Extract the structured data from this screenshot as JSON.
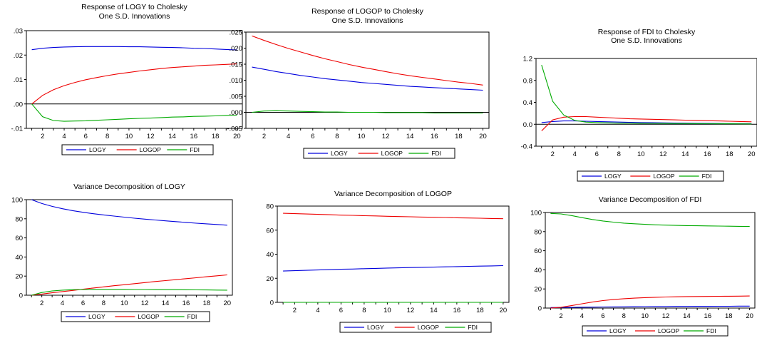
{
  "series_colors": {
    "LOGY": "#0000dd",
    "LOGOP": "#ee0000",
    "FDI": "#00aa00"
  },
  "chart_data": [
    {
      "type": "line",
      "title": "Response of LOGY to Cholesky One S.D. Innovations",
      "title_lines": [
        "Response of LOGY to Cholesky",
        "One S.D. Innovations"
      ],
      "x": [
        1,
        2,
        3,
        4,
        5,
        6,
        7,
        8,
        9,
        10,
        11,
        12,
        13,
        14,
        15,
        16,
        17,
        18,
        19,
        20
      ],
      "xticks": [
        "2",
        "4",
        "6",
        "8",
        "10",
        "12",
        "14",
        "16",
        "18",
        "20"
      ],
      "ylim": [
        -0.01,
        0.03
      ],
      "yticks": [
        -0.01,
        0.0,
        0.01,
        0.02,
        0.03
      ],
      "ytick_labels": [
        "-.01",
        ".00",
        ".01",
        ".02",
        ".03"
      ],
      "zero_line": true,
      "legend": [
        "LOGY",
        "LOGOP",
        "FDI"
      ],
      "series": [
        {
          "name": "LOGY",
          "values": [
            0.0222,
            0.0228,
            0.0231,
            0.0233,
            0.0234,
            0.0235,
            0.0235,
            0.0235,
            0.0235,
            0.0234,
            0.0234,
            0.0233,
            0.0232,
            0.0231,
            0.023,
            0.0228,
            0.0227,
            0.0225,
            0.0223,
            0.0221
          ]
        },
        {
          "name": "LOGOP",
          "values": [
            0.0,
            0.0035,
            0.0058,
            0.0075,
            0.0088,
            0.0099,
            0.0108,
            0.0116,
            0.0123,
            0.0129,
            0.0135,
            0.014,
            0.0145,
            0.0149,
            0.0152,
            0.0155,
            0.0158,
            0.016,
            0.0162,
            0.0164
          ]
        },
        {
          "name": "FDI",
          "values": [
            0.0,
            -0.0052,
            -0.0068,
            -0.0071,
            -0.007,
            -0.0069,
            -0.0067,
            -0.0065,
            -0.0063,
            -0.0061,
            -0.0059,
            -0.0058,
            -0.0056,
            -0.0054,
            -0.0053,
            -0.0051,
            -0.005,
            -0.0049,
            -0.0047,
            -0.0046
          ]
        }
      ]
    },
    {
      "type": "line",
      "title": "Response of LOGOP to Cholesky One S.D. Innovations",
      "title_lines": [
        "Response of LOGOP to Cholesky",
        "One S.D. Innovations"
      ],
      "x": [
        1,
        2,
        3,
        4,
        5,
        6,
        7,
        8,
        9,
        10,
        11,
        12,
        13,
        14,
        15,
        16,
        17,
        18,
        19,
        20
      ],
      "xticks": [
        "2",
        "4",
        "6",
        "8",
        "10",
        "12",
        "14",
        "16",
        "18",
        "20"
      ],
      "ylim": [
        -0.005,
        0.025
      ],
      "yticks": [
        -0.005,
        0.0,
        0.005,
        0.01,
        0.015,
        0.02,
        0.025
      ],
      "ytick_labels": [
        "-.005",
        ".000",
        ".005",
        ".010",
        ".015",
        ".020",
        ".025"
      ],
      "zero_line": true,
      "legend": [
        "LOGY",
        "LOGOP",
        "FDI"
      ],
      "series": [
        {
          "name": "LOGY",
          "values": [
            0.0141,
            0.0134,
            0.0127,
            0.0121,
            0.0115,
            0.011,
            0.0105,
            0.0101,
            0.0097,
            0.0093,
            0.009,
            0.0087,
            0.0084,
            0.0081,
            0.0079,
            0.0077,
            0.0075,
            0.0073,
            0.0071,
            0.0069
          ]
        },
        {
          "name": "LOGOP",
          "values": [
            0.0238,
            0.0224,
            0.0211,
            0.0199,
            0.0188,
            0.0177,
            0.0167,
            0.0158,
            0.0149,
            0.0141,
            0.0134,
            0.0127,
            0.012,
            0.0114,
            0.0109,
            0.0104,
            0.0099,
            0.0094,
            0.009,
            0.0085
          ]
        },
        {
          "name": "FDI",
          "values": [
            0.0,
            0.0004,
            0.0005,
            0.0004,
            0.0003,
            0.0002,
            0.0001,
            0.0001,
            0.0,
            0.0,
            0.0,
            -0.0001,
            -0.0001,
            -0.0001,
            -0.0001,
            -0.0002,
            -0.0002,
            -0.0002,
            -0.0002,
            -0.0002
          ]
        }
      ]
    },
    {
      "type": "line",
      "title": "Response of FDI to Cholesky One S.D. Innovations",
      "title_lines": [
        "Response of FDI to Cholesky",
        "One S.D. Innovations"
      ],
      "x": [
        1,
        2,
        3,
        4,
        5,
        6,
        7,
        8,
        9,
        10,
        11,
        12,
        13,
        14,
        15,
        16,
        17,
        18,
        19,
        20
      ],
      "xticks": [
        "2",
        "4",
        "6",
        "8",
        "10",
        "12",
        "14",
        "16",
        "18",
        "20"
      ],
      "ylim": [
        -0.4,
        1.2
      ],
      "yticks": [
        -0.4,
        0.0,
        0.4,
        0.8,
        1.2
      ],
      "ytick_labels": [
        "-0.4",
        "0.0",
        "0.4",
        "0.8",
        "1.2"
      ],
      "zero_line": true,
      "legend": [
        "LOGY",
        "LOGOP",
        "FDI"
      ],
      "series": [
        {
          "name": "LOGY",
          "values": [
            0.03,
            0.05,
            0.06,
            0.06,
            0.055,
            0.05,
            0.045,
            0.04,
            0.035,
            0.03,
            0.028,
            0.025,
            0.022,
            0.02,
            0.018,
            0.016,
            0.014,
            0.012,
            0.011,
            0.01
          ]
        },
        {
          "name": "LOGOP",
          "values": [
            -0.12,
            0.08,
            0.13,
            0.14,
            0.14,
            0.13,
            0.12,
            0.11,
            0.1,
            0.095,
            0.09,
            0.085,
            0.08,
            0.075,
            0.07,
            0.065,
            0.06,
            0.055,
            0.05,
            0.045
          ]
        },
        {
          "name": "FDI",
          "values": [
            1.08,
            0.42,
            0.17,
            0.07,
            0.04,
            0.03,
            0.025,
            0.02,
            0.02,
            0.018,
            0.016,
            0.015,
            0.013,
            0.012,
            0.011,
            0.01,
            0.009,
            0.008,
            0.007,
            0.006
          ]
        }
      ]
    },
    {
      "type": "line",
      "title": "Variance Decomposition of LOGY",
      "title_lines": [
        "Variance Decomposition of LOGY"
      ],
      "x": [
        1,
        2,
        3,
        4,
        5,
        6,
        7,
        8,
        9,
        10,
        11,
        12,
        13,
        14,
        15,
        16,
        17,
        18,
        19,
        20
      ],
      "xticks": [
        "2",
        "4",
        "6",
        "8",
        "10",
        "12",
        "14",
        "16",
        "18",
        "20"
      ],
      "ylim": [
        0,
        100
      ],
      "yticks": [
        0,
        20,
        40,
        60,
        80,
        100
      ],
      "ytick_labels": [
        "0",
        "20",
        "40",
        "60",
        "80",
        "100"
      ],
      "zero_line": false,
      "legend": [
        "LOGY",
        "LOGOP",
        "FDI"
      ],
      "series": [
        {
          "name": "LOGY",
          "values": [
            100,
            96,
            93,
            90.5,
            88.5,
            86.8,
            85.3,
            84,
            82.8,
            81.7,
            80.6,
            79.6,
            78.7,
            77.8,
            77,
            76.2,
            75.4,
            74.7,
            74,
            73.3
          ]
        },
        {
          "name": "LOGOP",
          "values": [
            0,
            1.2,
            2.5,
            3.8,
            5,
            6.3,
            7.5,
            8.7,
            9.9,
            11,
            12.1,
            13.2,
            14.3,
            15.3,
            16.3,
            17.3,
            18.3,
            19.3,
            20.3,
            21.3
          ]
        },
        {
          "name": "FDI",
          "values": [
            0,
            2.8,
            4.5,
            5.3,
            5.8,
            6,
            6.1,
            6.1,
            6.1,
            6.1,
            6,
            6,
            5.9,
            5.8,
            5.8,
            5.7,
            5.6,
            5.5,
            5.4,
            5.3
          ]
        }
      ]
    },
    {
      "type": "line",
      "title": "Variance Decomposition of LOGOP",
      "title_lines": [
        "Variance Decomposition of LOGOP"
      ],
      "x": [
        1,
        2,
        3,
        4,
        5,
        6,
        7,
        8,
        9,
        10,
        11,
        12,
        13,
        14,
        15,
        16,
        17,
        18,
        19,
        20
      ],
      "xticks": [
        "2",
        "4",
        "6",
        "8",
        "10",
        "12",
        "14",
        "16",
        "18",
        "20"
      ],
      "ylim": [
        0,
        80
      ],
      "yticks": [
        0,
        20,
        40,
        60,
        80
      ],
      "ytick_labels": [
        "0",
        "20",
        "40",
        "60",
        "80"
      ],
      "zero_line": false,
      "legend": [
        "LOGY",
        "LOGOP",
        "FDI"
      ],
      "series": [
        {
          "name": "LOGY",
          "values": [
            26,
            26.3,
            26.6,
            26.9,
            27.2,
            27.5,
            27.7,
            28,
            28.2,
            28.5,
            28.7,
            28.9,
            29.1,
            29.3,
            29.5,
            29.7,
            29.9,
            30.1,
            30.3,
            30.5
          ]
        },
        {
          "name": "LOGOP",
          "values": [
            74,
            73.7,
            73.4,
            73.1,
            72.8,
            72.5,
            72.3,
            72,
            71.8,
            71.5,
            71.3,
            71.1,
            70.9,
            70.7,
            70.5,
            70.3,
            70.1,
            69.9,
            69.7,
            69.5
          ]
        },
        {
          "name": "FDI",
          "values": [
            0,
            0,
            0,
            0,
            0,
            0,
            0,
            0,
            0,
            0,
            0,
            0,
            0,
            0,
            0,
            0,
            0,
            0,
            0,
            0
          ]
        }
      ]
    },
    {
      "type": "line",
      "title": "Variance Decomposition of FDI",
      "title_lines": [
        "Variance Decomposition of FDI"
      ],
      "x": [
        1,
        2,
        3,
        4,
        5,
        6,
        7,
        8,
        9,
        10,
        11,
        12,
        13,
        14,
        15,
        16,
        17,
        18,
        19,
        20
      ],
      "xticks": [
        "2",
        "4",
        "6",
        "8",
        "10",
        "12",
        "14",
        "16",
        "18",
        "20"
      ],
      "ylim": [
        0,
        100
      ],
      "yticks": [
        0,
        20,
        40,
        60,
        80,
        100
      ],
      "ytick_labels": [
        "0",
        "20",
        "40",
        "60",
        "80",
        "100"
      ],
      "zero_line": false,
      "legend": [
        "LOGY",
        "LOGOP",
        "FDI"
      ],
      "series": [
        {
          "name": "LOGY",
          "values": [
            0.5,
            0.6,
            0.7,
            0.9,
            1,
            1.1,
            1.2,
            1.3,
            1.4,
            1.5,
            1.6,
            1.6,
            1.7,
            1.7,
            1.8,
            1.8,
            1.9,
            1.9,
            2,
            2
          ]
        },
        {
          "name": "LOGOP",
          "values": [
            0,
            0.8,
            2.5,
            4.5,
            6.3,
            7.8,
            8.9,
            9.8,
            10.4,
            10.9,
            11.3,
            11.6,
            11.8,
            12,
            12.1,
            12.2,
            12.3,
            12.4,
            12.5,
            12.6
          ]
        },
        {
          "name": "FDI",
          "values": [
            99,
            98.5,
            96.8,
            94.6,
            92.7,
            91.1,
            89.9,
            88.9,
            88.2,
            87.6,
            87.1,
            86.8,
            86.5,
            86.3,
            86.1,
            86,
            85.8,
            85.7,
            85.5,
            85.4
          ]
        }
      ]
    }
  ]
}
